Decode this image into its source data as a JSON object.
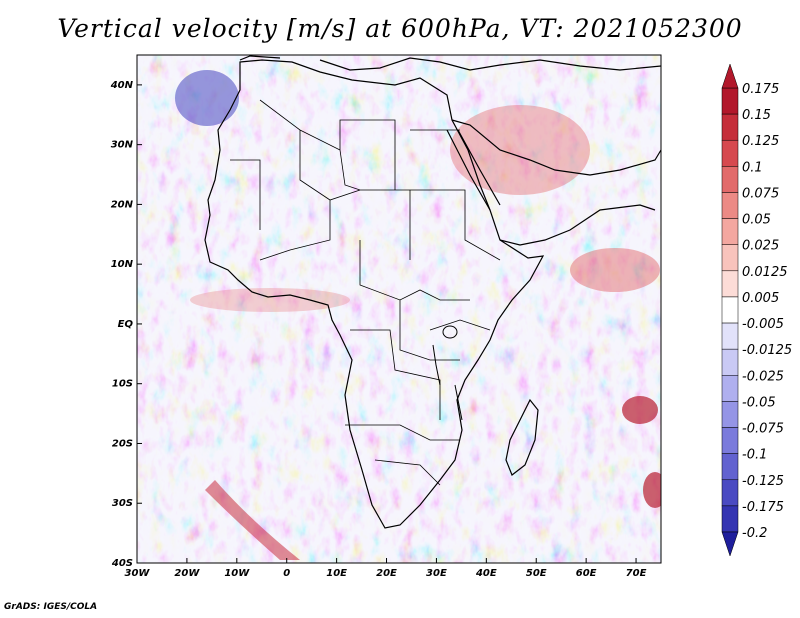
{
  "title": "Vertical velocity [m/s] at 600hPa, VT: 2021052300",
  "credit": "GrADS: IGES/COLA",
  "chart_data": {
    "type": "heatmap",
    "variable": "Vertical velocity",
    "units": "m/s",
    "level": "600hPa",
    "valid_time": "2021052300",
    "x_range": [
      -30,
      75
    ],
    "y_range": [
      -40,
      45
    ],
    "x_ticks": [
      {
        "value": -30,
        "label": "30W"
      },
      {
        "value": -20,
        "label": "20W"
      },
      {
        "value": -10,
        "label": "10W"
      },
      {
        "value": 0,
        "label": "0"
      },
      {
        "value": 10,
        "label": "10E"
      },
      {
        "value": 20,
        "label": "20E"
      },
      {
        "value": 30,
        "label": "30E"
      },
      {
        "value": 40,
        "label": "40E"
      },
      {
        "value": 50,
        "label": "50E"
      },
      {
        "value": 60,
        "label": "60E"
      },
      {
        "value": 70,
        "label": "70E"
      }
    ],
    "y_ticks": [
      {
        "value": 40,
        "label": "40N"
      },
      {
        "value": 30,
        "label": "30N"
      },
      {
        "value": 20,
        "label": "20N"
      },
      {
        "value": 10,
        "label": "10N"
      },
      {
        "value": 0,
        "label": "EQ"
      },
      {
        "value": -10,
        "label": "10S"
      },
      {
        "value": -20,
        "label": "20S"
      },
      {
        "value": -30,
        "label": "30S"
      },
      {
        "value": -40,
        "label": "40S"
      }
    ],
    "colorbar": {
      "labels": [
        "0.175",
        "0.15",
        "0.125",
        "0.1",
        "0.075",
        "0.05",
        "0.025",
        "0.0125",
        "0.005",
        "-0.005",
        "-0.0125",
        "-0.025",
        "-0.05",
        "-0.075",
        "-0.1",
        "-0.125",
        "-0.175",
        "-0.2"
      ],
      "colors": [
        "#b2182b",
        "#c52e3a",
        "#d6494f",
        "#e26a6a",
        "#ec8a85",
        "#f3a7a0",
        "#f8c3bc",
        "#fcdcd7",
        "#ffffff",
        "#e2e2fa",
        "#c9c9f4",
        "#afafee",
        "#9595e6",
        "#7b7bdc",
        "#6262d0",
        "#4a4ac2",
        "#3434b2",
        "#1e1e9c"
      ]
    }
  }
}
